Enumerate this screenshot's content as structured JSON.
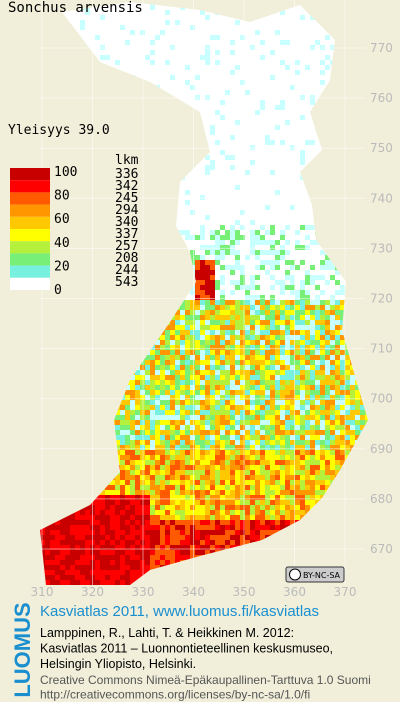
{
  "title": "Sonchus arvensis",
  "frequency_label": "Yleisyys  39.0",
  "legend": {
    "scale_labels": [
      "100",
      "80",
      "60",
      "40",
      "20",
      "0"
    ],
    "count_header": "lkm",
    "counts": [
      336,
      342,
      245,
      294,
      340,
      337,
      257,
      208,
      244,
      543
    ]
  },
  "northing_labels": [
    "770",
    "760",
    "750",
    "740",
    "730",
    "720",
    "710",
    "700",
    "690",
    "680",
    "670"
  ],
  "easting_labels": [
    "310",
    "320",
    "330",
    "340",
    "350",
    "360",
    "370"
  ],
  "license_badge": "BY-NC-SA",
  "footer": {
    "logo": "LUOMUS",
    "heading": "Kasviatlas 2011, www.luomus.fi/kasviatlas",
    "citation": [
      "Lamppinen, R., Lahti, T. & Heikkinen M. 2012:",
      "Kasviatlas 2011 – Luonnontieteellinen keskusmuseo,",
      "Helsingin Yliopisto, Helsinki."
    ],
    "license": [
      "Creative Commons Nimeä-Epäkaupallinen-Tarttuva 1.0 Suomi",
      "http://creativecommons.org/licenses/by-nc-sa/1.0/fi"
    ]
  }
}
